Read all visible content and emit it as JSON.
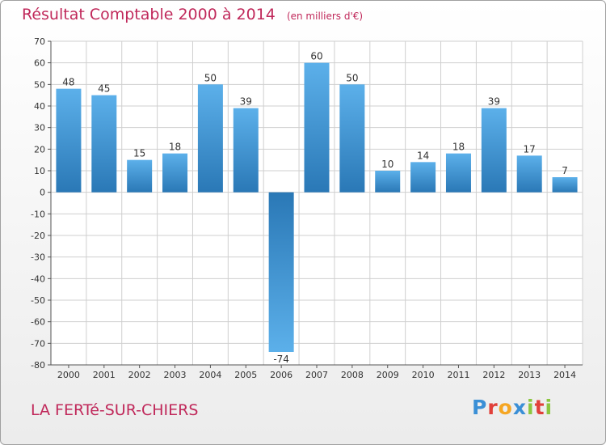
{
  "header": {
    "title": "Résultat Comptable 2000 à 2014",
    "subtitle": "(en milliers d'€)"
  },
  "footer": {
    "town": "LA FERTé-SUR-CHIERS",
    "logo": "Proxiti",
    "logo_colors": [
      "#3a8fd6",
      "#e1403a",
      "#f5a623",
      "#3a8fd6",
      "#8cc63f",
      "#e1403a",
      "#8cc63f"
    ]
  },
  "colors": {
    "title": "#c0285a",
    "bar_dark": "#2a78b6",
    "bar_light": "#5cb0ea",
    "grid": "#cfcfcf"
  },
  "chart_data": {
    "type": "bar",
    "title": "Résultat Comptable 2000 à 2014",
    "subtitle": "(en milliers d'€)",
    "xlabel": "",
    "ylabel": "",
    "categories": [
      "2000",
      "2001",
      "2002",
      "2003",
      "2004",
      "2005",
      "2006",
      "2007",
      "2008",
      "2009",
      "2010",
      "2011",
      "2012",
      "2013",
      "2014"
    ],
    "values": [
      48,
      45,
      15,
      18,
      50,
      39,
      -74,
      60,
      50,
      10,
      14,
      18,
      39,
      17,
      7
    ],
    "data_labels": [
      "48",
      "45",
      "15",
      "18",
      "50",
      "39",
      "-74",
      "60",
      "50",
      "10",
      "14",
      "18",
      "39",
      "17",
      "7"
    ],
    "ylim": [
      -80,
      70
    ],
    "yticks": [
      70,
      60,
      50,
      40,
      30,
      20,
      10,
      0,
      -10,
      -20,
      -30,
      -40,
      -50,
      -60,
      -70,
      -80
    ],
    "grid": true,
    "legend": "none"
  }
}
